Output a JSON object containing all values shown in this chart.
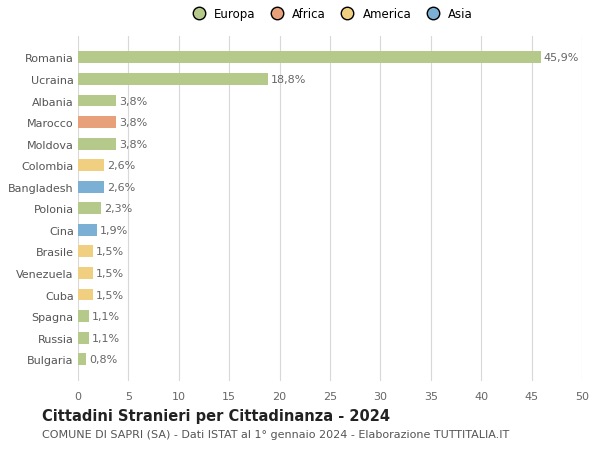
{
  "countries": [
    "Romania",
    "Ucraina",
    "Albania",
    "Marocco",
    "Moldova",
    "Colombia",
    "Bangladesh",
    "Polonia",
    "Cina",
    "Brasile",
    "Venezuela",
    "Cuba",
    "Spagna",
    "Russia",
    "Bulgaria"
  ],
  "values": [
    45.9,
    18.8,
    3.8,
    3.8,
    3.8,
    2.6,
    2.6,
    2.3,
    1.9,
    1.5,
    1.5,
    1.5,
    1.1,
    1.1,
    0.8
  ],
  "labels": [
    "45,9%",
    "18,8%",
    "3,8%",
    "3,8%",
    "3,8%",
    "2,6%",
    "2,6%",
    "2,3%",
    "1,9%",
    "1,5%",
    "1,5%",
    "1,5%",
    "1,1%",
    "1,1%",
    "0,8%"
  ],
  "continents": [
    "Europa",
    "Europa",
    "Europa",
    "Africa",
    "Europa",
    "America",
    "Asia",
    "Europa",
    "Asia",
    "America",
    "America",
    "America",
    "Europa",
    "Europa",
    "Europa"
  ],
  "continent_colors": {
    "Europa": "#b5c98a",
    "Africa": "#e8a07a",
    "America": "#f0d080",
    "Asia": "#7bafd4"
  },
  "legend_labels": [
    "Europa",
    "Africa",
    "America",
    "Asia"
  ],
  "legend_colors": [
    "#b5c98a",
    "#e8a07a",
    "#f0d080",
    "#7bafd4"
  ],
  "xlim": [
    0,
    50
  ],
  "xticks": [
    0,
    5,
    10,
    15,
    20,
    25,
    30,
    35,
    40,
    45,
    50
  ],
  "title": "Cittadini Stranieri per Cittadinanza - 2024",
  "subtitle": "COMUNE DI SAPRI (SA) - Dati ISTAT al 1° gennaio 2024 - Elaborazione TUTTITALIA.IT",
  "background_color": "#ffffff",
  "grid_color": "#d8d8d8",
  "bar_height": 0.55,
  "title_fontsize": 10.5,
  "subtitle_fontsize": 8,
  "tick_fontsize": 8,
  "label_fontsize": 8,
  "legend_fontsize": 8.5
}
